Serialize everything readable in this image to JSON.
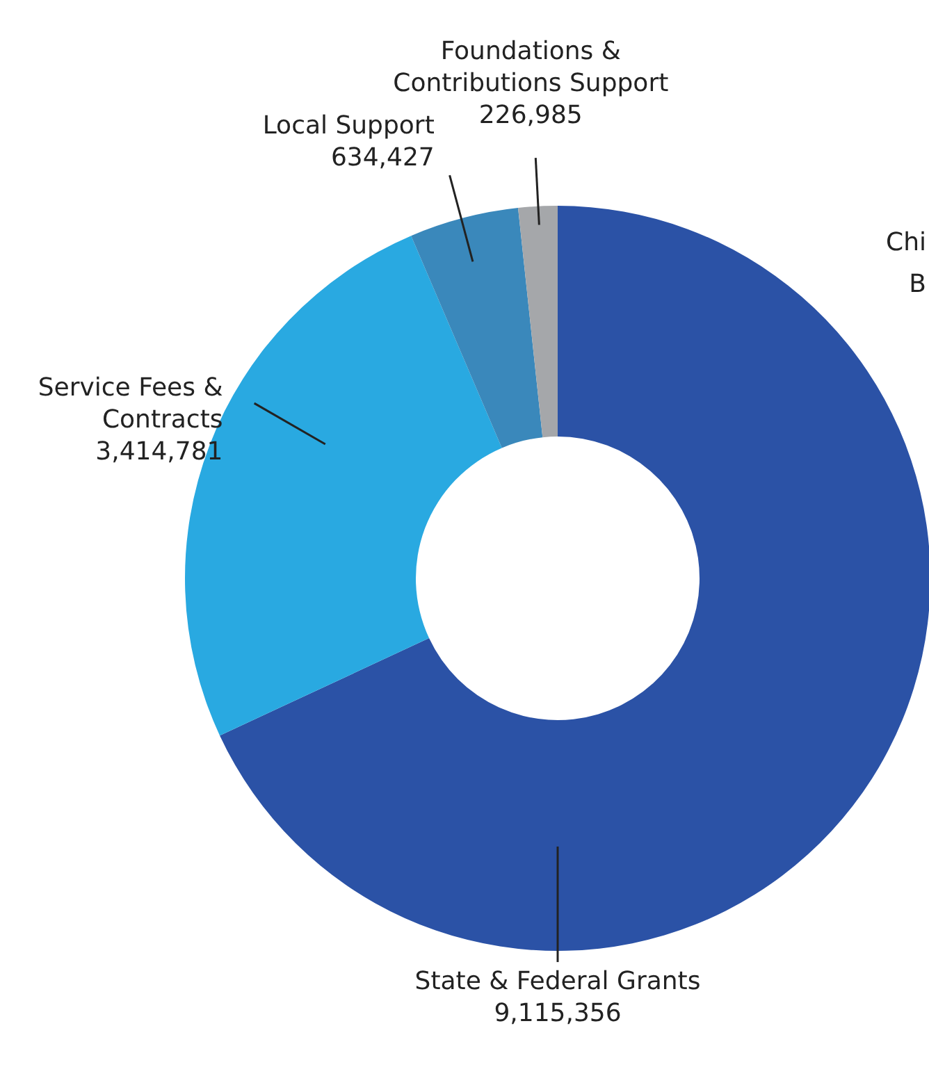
{
  "chart_data": {
    "type": "donut",
    "categories": [
      "State & Federal Grants",
      "Service Fees &\nContracts",
      "Local Support",
      "Foundations &\nContributions Support"
    ],
    "values": [
      9115356,
      3414781,
      634427,
      226985
    ],
    "colors": [
      "#2b52a6",
      "#29a9e1",
      "#3a88bb",
      "#a5a7aa"
    ],
    "value_labels": [
      "9,115,356",
      "3,414,781",
      "634,427",
      "226,985"
    ],
    "annotations": [
      "Chi",
      "B"
    ]
  }
}
